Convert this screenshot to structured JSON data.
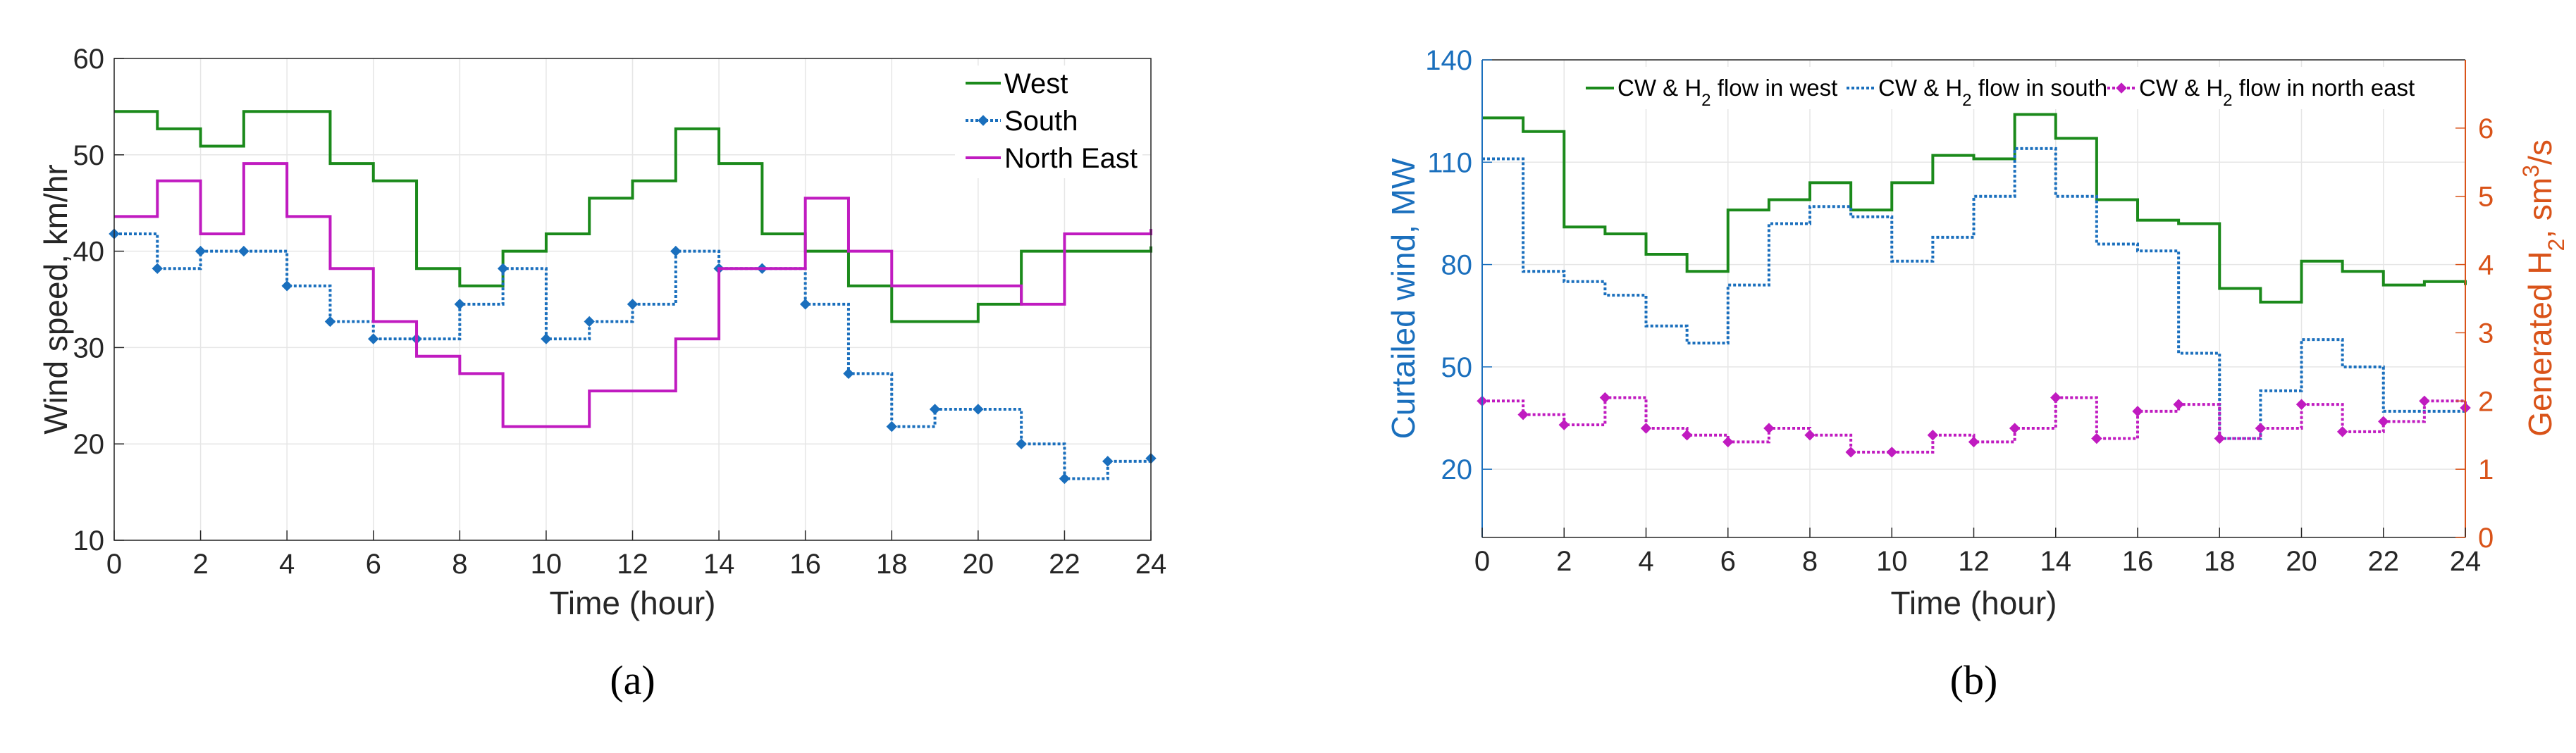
{
  "chart_data": [
    {
      "type": "line",
      "panel_label": "(a)",
      "xlabel": "Time (hour)",
      "ylabel": "Wind speed, km/hr",
      "xlim": [
        0,
        24
      ],
      "ylim": [
        10,
        60
      ],
      "xticks": [
        0,
        2,
        4,
        6,
        8,
        10,
        12,
        14,
        16,
        18,
        20,
        22,
        24
      ],
      "yticks": [
        10,
        20,
        30,
        40,
        50,
        60
      ],
      "grid": true,
      "legend_position": "top-right",
      "series": [
        {
          "name": "West",
          "color": "#1b8a1b",
          "marker": "none",
          "style": "solid",
          "values": [
            54.5,
            52.7,
            50.9,
            54.5,
            54.5,
            49.1,
            47.3,
            38.2,
            36.4,
            40.0,
            41.8,
            45.5,
            47.3,
            52.7,
            49.1,
            41.8,
            40.0,
            36.4,
            32.7,
            32.7,
            34.5,
            40.0,
            40.0,
            40.0,
            40.5
          ]
        },
        {
          "name": "South",
          "color": "#1a6fbd",
          "marker": "diamond",
          "style": "dashed",
          "values": [
            41.8,
            38.2,
            40.0,
            40.0,
            36.4,
            32.7,
            30.9,
            30.9,
            34.5,
            38.2,
            30.9,
            32.7,
            34.5,
            40.0,
            38.2,
            38.2,
            34.5,
            27.3,
            21.8,
            23.6,
            23.6,
            20.0,
            16.4,
            18.2,
            18.5
          ]
        },
        {
          "name": "North East",
          "color": "#c01bc0",
          "marker": "none",
          "style": "solid",
          "values": [
            43.6,
            47.3,
            41.8,
            49.1,
            43.6,
            38.2,
            32.7,
            29.1,
            27.3,
            21.8,
            21.8,
            25.5,
            25.5,
            30.9,
            38.2,
            38.2,
            45.5,
            40.0,
            36.4,
            36.4,
            36.4,
            34.5,
            41.8,
            41.8,
            42.3
          ]
        }
      ]
    },
    {
      "type": "line",
      "panel_label": "(b)",
      "xlabel": "Time (hour)",
      "ylabel_left": "Curtailed wind, MW",
      "ylabel_right": "Generated H2, sm3/s",
      "ylabel_right_parts": {
        "base": "Generated H",
        "sub": "2",
        "mid": ", sm",
        "sup": "3",
        "tail": "/s"
      },
      "xlim": [
        0,
        24
      ],
      "ylim_left": [
        0,
        140
      ],
      "ylim_right": [
        0,
        7
      ],
      "xticks": [
        0,
        2,
        4,
        6,
        8,
        10,
        12,
        14,
        16,
        18,
        20,
        22,
        24
      ],
      "yticks_left": [
        20,
        50,
        80,
        110,
        140
      ],
      "yticks_right": [
        0,
        1,
        2,
        3,
        4,
        5,
        6
      ],
      "left_axis_color": "#1a6fbd",
      "right_axis_color": "#d95319",
      "grid": true,
      "legend_position": "top",
      "series": [
        {
          "name": "CW & H2 flow in west",
          "label_parts": [
            "CW & H",
            "2",
            " flow in west"
          ],
          "color": "#1b8a1b",
          "marker": "none",
          "style": "solid",
          "axis": "left",
          "values": [
            123,
            119,
            91,
            89,
            83,
            78,
            96,
            99,
            104,
            96,
            104,
            112,
            111,
            124,
            117,
            99,
            93,
            92,
            73,
            69,
            81,
            78,
            74,
            75,
            74
          ]
        },
        {
          "name": "CW & H2 flow in south",
          "label_parts": [
            "CW & H",
            "2",
            " flow in south"
          ],
          "color": "#1a6fbd",
          "marker": "none",
          "style": "dashed",
          "axis": "left",
          "values": [
            111,
            78,
            75,
            71,
            62,
            57,
            74,
            92,
            97,
            94,
            81,
            88,
            100,
            114,
            100,
            86,
            84,
            54,
            29,
            43,
            58,
            50,
            37,
            37,
            37
          ]
        },
        {
          "name": "CW & H2 flow in north east",
          "label_parts": [
            "CW & H",
            "2",
            " flow in north east"
          ],
          "color": "#c01bc0",
          "marker": "diamond",
          "style": "dashed",
          "axis": "right",
          "values": [
            2.0,
            1.8,
            1.65,
            2.05,
            1.6,
            1.5,
            1.4,
            1.6,
            1.5,
            1.25,
            1.25,
            1.5,
            1.4,
            1.6,
            2.05,
            1.45,
            1.85,
            1.95,
            1.45,
            1.6,
            1.95,
            1.55,
            1.7,
            2.0,
            1.9
          ]
        }
      ]
    }
  ]
}
